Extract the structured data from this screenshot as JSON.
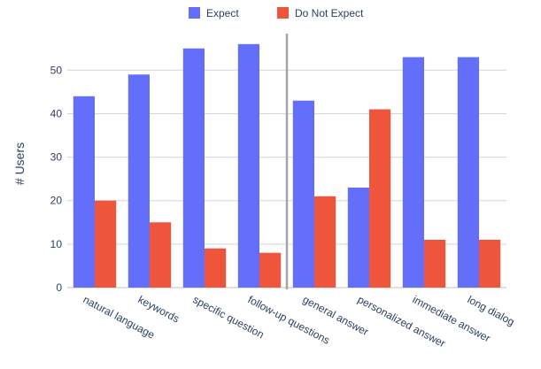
{
  "chart_data": {
    "type": "bar",
    "title": "",
    "xlabel": "",
    "ylabel": "# Users",
    "ylim": [
      0,
      58
    ],
    "yticks": [
      0,
      10,
      20,
      30,
      40,
      50
    ],
    "grid": true,
    "legend_position": "top-center",
    "categories": [
      "natural language",
      "keywords",
      "specific question",
      "follow-up questions",
      "general answer",
      "personalized answer",
      "immediate answer",
      "long dialog"
    ],
    "series": [
      {
        "name": "Expect",
        "color": "#636efa",
        "values": [
          44,
          49,
          55,
          56,
          43,
          23,
          53,
          53
        ]
      },
      {
        "name": "Do Not Expect",
        "color": "#ef553b",
        "values": [
          20,
          15,
          9,
          8,
          21,
          41,
          11,
          11
        ]
      }
    ],
    "divider_after_category_index": 3,
    "colors": {
      "grid": "#d5d5d5",
      "axis_text": "#2a3f5f",
      "divider": "#a5a5a5"
    }
  }
}
